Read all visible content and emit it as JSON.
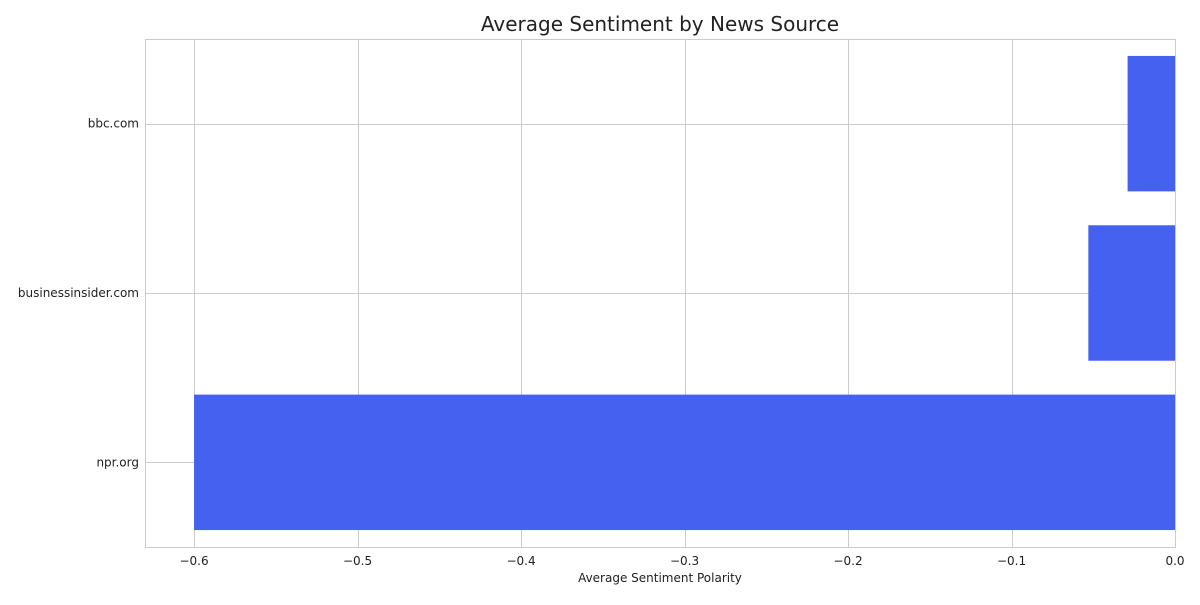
{
  "chart_data": {
    "type": "bar",
    "orientation": "horizontal",
    "title": "Average Sentiment by News Source",
    "xlabel": "Average Sentiment Polarity",
    "ylabel": "",
    "categories": [
      "bbc.com",
      "businessinsider.com",
      "npr.org"
    ],
    "values": [
      -0.029,
      -0.053,
      -0.6
    ],
    "xlim": [
      -0.63,
      0.0
    ],
    "xticks": [
      -0.6,
      -0.5,
      -0.4,
      -0.3,
      -0.2,
      -0.1,
      0.0
    ],
    "xtick_labels": [
      "−0.6",
      "−0.5",
      "−0.4",
      "−0.3",
      "−0.2",
      "−0.1",
      "0.0"
    ],
    "grid": true,
    "legend": "none",
    "bar_color": "#4461ef",
    "grid_color": "#cccccc"
  }
}
